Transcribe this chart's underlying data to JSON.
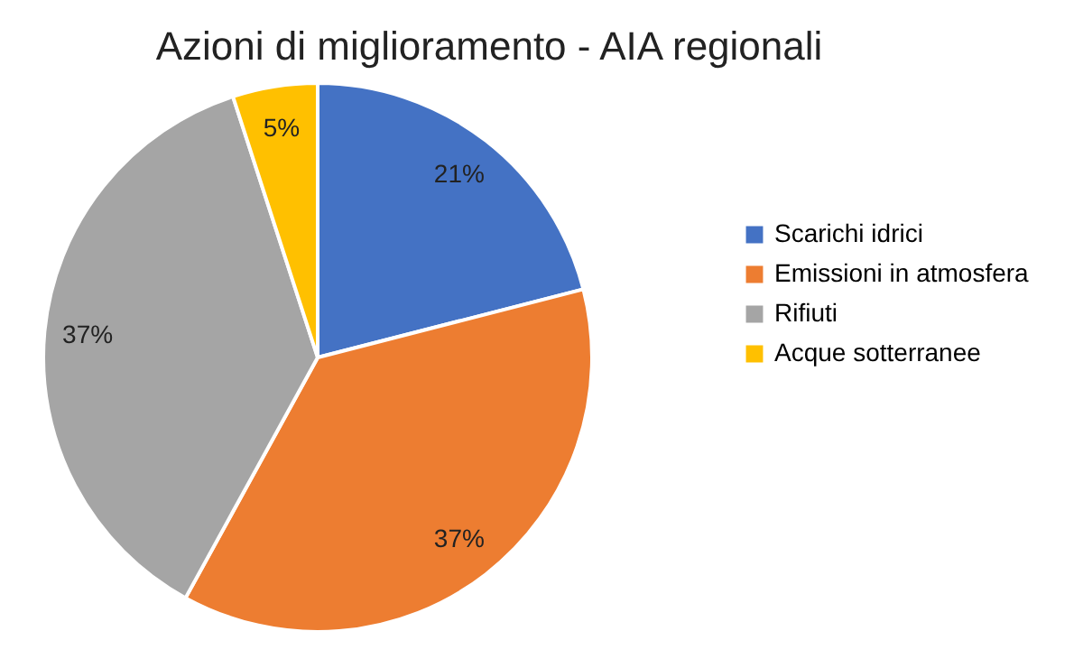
{
  "chart_data": {
    "type": "pie",
    "title": "Azioni di miglioramento - AIA regionali",
    "categories": [
      "Scarichi idrici",
      "Emissioni in atmosfera",
      "Rifiuti",
      "Acque sotterranee"
    ],
    "values": [
      21,
      37,
      37,
      5
    ],
    "colors": [
      "#4472c4",
      "#ed7d31",
      "#a5a5a5",
      "#ffc000"
    ],
    "value_labels": [
      "21%",
      "37%",
      "37%",
      "5%"
    ],
    "legend": "right"
  }
}
